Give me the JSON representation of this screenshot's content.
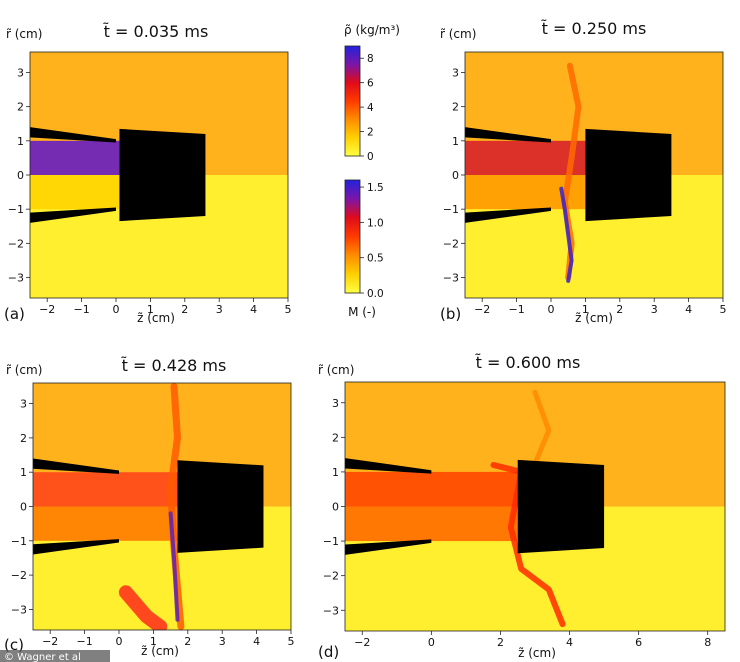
{
  "figure": {
    "credit": "© Wagner et al",
    "colorbar_density": {
      "label": "ρ̃ (kg/m³)",
      "ticks": [
        "8",
        "6",
        "4",
        "2",
        "0"
      ],
      "tick_values": [
        8,
        6,
        4,
        2,
        0
      ],
      "range": [
        0,
        9
      ]
    },
    "colorbar_mach": {
      "label": "M (-)",
      "ticks": [
        "1.5",
        "1.0",
        "0.5",
        "0.0"
      ],
      "tick_values": [
        1.5,
        1.0,
        0.5,
        0.0
      ],
      "range": [
        0,
        1.6
      ]
    },
    "colormap": [
      "#ffff44",
      "#ffd000",
      "#ff8c00",
      "#ff3a00",
      "#e00b1a",
      "#7b16a8",
      "#2222dd"
    ]
  },
  "chart_data": [
    {
      "type": "heatmap",
      "panel_label": "(a)",
      "title": "t̃ = 0.035 ms",
      "xlabel": "z̃ (cm)",
      "ylabel": "r̃ (cm)",
      "xlim": [
        -2.5,
        5
      ],
      "ylim": [
        -3.6,
        3.6
      ],
      "xticks": [
        -2,
        -1,
        0,
        1,
        2,
        3,
        4,
        5
      ],
      "yticks": [
        3,
        2,
        1,
        0,
        -1,
        -2,
        -3
      ],
      "nozzle_exit_z": 0.0,
      "body_front_z": 0.1,
      "body_back_z": 2.6,
      "upper_half_field": "density",
      "lower_half_field": "mach"
    },
    {
      "type": "heatmap",
      "panel_label": "(b)",
      "title": "t̃ = 0.250 ms",
      "xlabel": "z̃ (cm)",
      "ylabel": "r̃ (cm)",
      "xlim": [
        -2.5,
        5
      ],
      "ylim": [
        -3.6,
        3.6
      ],
      "xticks": [
        -2,
        -1,
        0,
        1,
        2,
        3,
        4,
        5
      ],
      "yticks": [
        3,
        2,
        1,
        0,
        -1,
        -2,
        -3
      ],
      "nozzle_exit_z": 0.0,
      "body_front_z": 1.0,
      "body_back_z": 3.5,
      "upper_half_field": "density",
      "lower_half_field": "mach"
    },
    {
      "type": "heatmap",
      "panel_label": "(c)",
      "title": "t̃ = 0.428 ms",
      "xlabel": "z̃ (cm)",
      "ylabel": "r̃ (cm)",
      "xlim": [
        -2.5,
        5
      ],
      "ylim": [
        -3.6,
        3.6
      ],
      "xticks": [
        -2,
        -1,
        0,
        1,
        2,
        3,
        4,
        5
      ],
      "yticks": [
        3,
        2,
        1,
        0,
        -1,
        -2,
        -3
      ],
      "nozzle_exit_z": 0.0,
      "body_front_z": 1.7,
      "body_back_z": 4.2,
      "upper_half_field": "density",
      "lower_half_field": "mach"
    },
    {
      "type": "heatmap",
      "panel_label": "(d)",
      "title": "t̃ = 0.600 ms",
      "xlabel": "z̃ (cm)",
      "ylabel": "r̃ (cm)",
      "xlim": [
        -2.5,
        8.5
      ],
      "ylim": [
        -3.6,
        3.6
      ],
      "xticks": [
        -2,
        0,
        2,
        4,
        6,
        8
      ],
      "yticks": [
        3,
        2,
        1,
        0,
        -1,
        -2,
        -3
      ],
      "nozzle_exit_z": 0.0,
      "body_front_z": 2.5,
      "body_back_z": 5.0,
      "upper_half_field": "density",
      "lower_half_field": "mach"
    }
  ]
}
